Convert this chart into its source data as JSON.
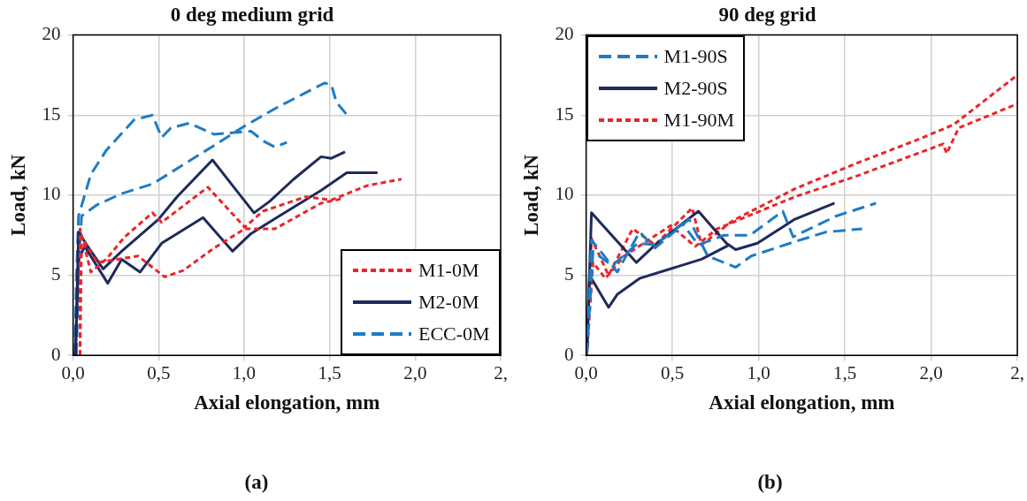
{
  "chart_data": [
    {
      "type": "line",
      "title": "0 deg medium grid",
      "xlabel": "Axial elongation, mm",
      "ylabel": "Load, kN",
      "annotations": [
        "(a)"
      ],
      "xlim": [
        0,
        2.5
      ],
      "ylim": [
        0,
        20
      ],
      "xticks": [
        {
          "value": 0,
          "label": "0,0"
        },
        {
          "value": 0.5,
          "label": "0,5"
        },
        {
          "value": 1,
          "label": "1,0"
        },
        {
          "value": 1.5,
          "label": "1,5"
        },
        {
          "value": 2,
          "label": "2,0"
        },
        {
          "value": 2.5,
          "label": "2,"
        }
      ],
      "yticks": [
        0,
        5,
        10,
        15,
        20
      ],
      "grid": true,
      "legend": "bottom right",
      "marker": "none",
      "series": [
        {
          "name": "M1-0M",
          "color": "#e8262a",
          "line_style": "dotted",
          "x": [
            0.041,
            0.041,
            0.104,
            0.194,
            0.302,
            0.464,
            0.518,
            0.788,
            1.004,
            1.11,
            1.36,
            1.51,
            1.72,
            1.92
          ],
          "values": [
            0,
            7.9,
            5.2,
            6.0,
            7.4,
            8.9,
            8.3,
            10.5,
            8.0,
            9.0,
            9.9,
            9.7,
            10.6,
            11.0
          ]
        },
        {
          "color": "#e8262a",
          "line_style": "dotted",
          "x": [
            0.041,
            0.05,
            0.14,
            0.38,
            0.536,
            0.644,
            0.824,
            1.004,
            1.18,
            1.45,
            1.58
          ],
          "values": [
            0,
            7.4,
            5.8,
            6.2,
            4.9,
            5.3,
            6.7,
            7.9,
            7.9,
            9.5,
            9.8
          ]
        },
        {
          "name": "M2-0M",
          "color": "#1f2a5c",
          "line_style": "solid",
          "x": [
            0.014,
            0.032,
            0.086,
            0.176,
            0.284,
            0.5,
            0.608,
            0.815,
            1.058,
            1.148,
            1.29,
            1.45,
            1.51,
            1.59
          ],
          "values": [
            0,
            7.7,
            6.8,
            5.4,
            6.5,
            8.5,
            9.9,
            12.2,
            8.9,
            9.6,
            11.0,
            12.4,
            12.3,
            12.7
          ]
        },
        {
          "color": "#1f2a5c",
          "line_style": "solid",
          "x": [
            0.014,
            0.032,
            0.068,
            0.203,
            0.284,
            0.392,
            0.518,
            0.76,
            0.932,
            1.04,
            1.22,
            1.45,
            1.6,
            1.78
          ],
          "values": [
            0,
            6.0,
            6.8,
            4.5,
            6.0,
            5.2,
            7.0,
            8.6,
            6.5,
            7.6,
            8.8,
            10.3,
            11.4,
            11.4
          ]
        },
        {
          "name": "ECC-0M",
          "color": "#1e7bc4",
          "line_style": "dashed",
          "x": [
            0.01,
            0.02,
            0.032,
            0.104,
            0.194,
            0.356,
            0.464,
            0.518,
            0.572,
            0.68,
            0.824,
            1.04,
            1.11,
            1.18,
            1.25
          ],
          "values": [
            0,
            5,
            8.7,
            11.3,
            12.8,
            14.7,
            15.0,
            13.6,
            14.2,
            14.5,
            13.8,
            14.0,
            13.4,
            13.0,
            13.3
          ]
        },
        {
          "color": "#1e7bc4",
          "line_style": "dashed",
          "x": [
            0.02,
            0.03,
            0.05,
            0.14,
            0.284,
            0.464,
            0.644,
            0.824,
            1.0,
            1.18,
            1.36,
            1.47,
            1.51,
            1.54,
            1.61
          ],
          "values": [
            0,
            5,
            8.7,
            9.4,
            10.1,
            10.7,
            11.9,
            13.1,
            14.3,
            15.4,
            16.4,
            17.0,
            16.9,
            15.8,
            14.9
          ]
        }
      ]
    },
    {
      "type": "line",
      "title": "90 deg grid",
      "xlabel": "Axial elongation, mm",
      "ylabel": "Load, kN",
      "annotations": [
        "(b)"
      ],
      "xlim": [
        0,
        2.5
      ],
      "ylim": [
        0,
        20
      ],
      "xticks": [
        {
          "value": 0,
          "label": "0,0"
        },
        {
          "value": 0.5,
          "label": "0,5"
        },
        {
          "value": 1,
          "label": "1,0"
        },
        {
          "value": 1.5,
          "label": "1,5"
        },
        {
          "value": 2,
          "label": "2,0"
        },
        {
          "value": 2.5,
          "label": "2,"
        }
      ],
      "yticks": [
        0,
        5,
        10,
        15,
        20
      ],
      "grid": true,
      "legend": "top left",
      "marker": "none",
      "series": [
        {
          "name": "M1-90S",
          "color": "#1e7bc4",
          "line_style": "dashed",
          "x": [
            0.004,
            0.031,
            0.18,
            0.31,
            0.4,
            0.597,
            0.705,
            0.867,
            0.957,
            1.21,
            1.39,
            1.6
          ],
          "values": [
            0,
            7.2,
            5.2,
            7.7,
            6.7,
            8.5,
            6.2,
            5.5,
            6.2,
            7.1,
            7.7,
            7.9
          ]
        },
        {
          "color": "#1e7bc4",
          "line_style": "dashed",
          "x": [
            0.004,
            0.04,
            0.15,
            0.3,
            0.4,
            0.56,
            0.65,
            0.8,
            0.95,
            1.14,
            1.2,
            1.45,
            1.68
          ],
          "values": [
            0,
            6.5,
            5.6,
            7.0,
            6.9,
            8.2,
            6.9,
            7.5,
            7.5,
            9.0,
            7.4,
            8.7,
            9.5
          ]
        },
        {
          "name": "M2-90S",
          "color": "#1f2a5c",
          "line_style": "solid",
          "x": [
            0.004,
            0.031,
            0.291,
            0.4,
            0.651,
            0.813,
            0.867,
            0.993,
            1.21,
            1.44
          ],
          "values": [
            0,
            8.9,
            5.8,
            6.9,
            9.0,
            7.0,
            6.6,
            7.0,
            8.5,
            9.5
          ]
        },
        {
          "color": "#1f2a5c",
          "line_style": "solid",
          "x": [
            0.004,
            0.02,
            0.13,
            0.18,
            0.309,
            0.669,
            0.83
          ],
          "values": [
            0,
            5,
            3.0,
            3.8,
            4.8,
            6.0,
            6.9
          ]
        },
        {
          "name": "M1-90M",
          "color": "#e8262a",
          "line_style": "dotted",
          "x": [
            0.004,
            0.031,
            0.13,
            0.27,
            0.4,
            0.615,
            0.669,
            0.849,
            1.21,
            1.57,
            1.93,
            2.13,
            2.5
          ],
          "values": [
            0,
            7.3,
            5.0,
            7.9,
            6.9,
            9.2,
            6.9,
            8.4,
            10.4,
            12.0,
            13.5,
            14.4,
            17.5
          ]
        },
        {
          "color": "#e8262a",
          "line_style": "dotted",
          "x": [
            0.004,
            0.04,
            0.112,
            0.22,
            0.49,
            0.633,
            0.759,
            1.21,
            1.57,
            2.07,
            2.09,
            2.16,
            2.5
          ],
          "values": [
            0,
            5.8,
            4.8,
            6.2,
            8.1,
            6.8,
            7.9,
            9.9,
            11.2,
            13.2,
            12.6,
            14.2,
            15.7
          ]
        }
      ]
    }
  ]
}
